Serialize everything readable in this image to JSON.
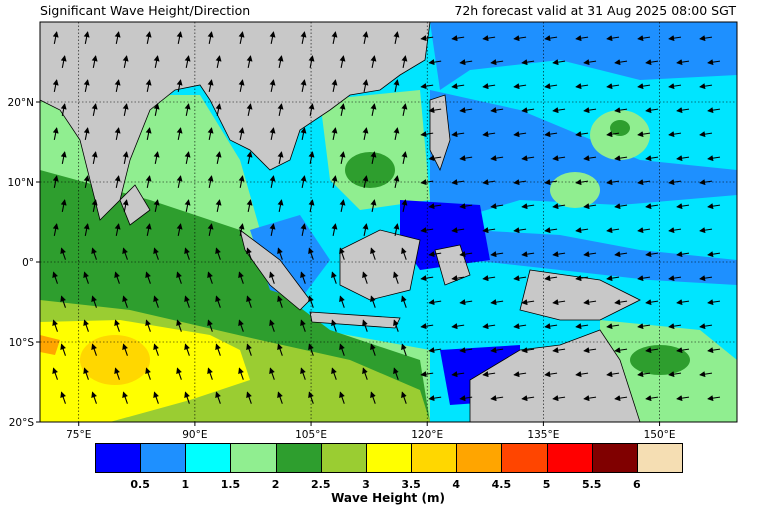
{
  "header": {
    "title": "Significant Wave Height/Direction",
    "valid_time": "72h forecast valid at 31 Aug 2025 08:00 SGT"
  },
  "map": {
    "lon_range": [
      70,
      160
    ],
    "lat_range": [
      -20,
      30
    ],
    "lon_ticks": [
      {
        "value": 75,
        "label": "75°E"
      },
      {
        "value": 90,
        "label": "90°E"
      },
      {
        "value": 105,
        "label": "105°E"
      },
      {
        "value": 120,
        "label": "120°E"
      },
      {
        "value": 135,
        "label": "135°E"
      },
      {
        "value": 150,
        "label": "150°E"
      }
    ],
    "lat_ticks": [
      {
        "value": 20,
        "label": "20°N"
      },
      {
        "value": 10,
        "label": "10°N"
      },
      {
        "value": 0,
        "label": "0°"
      },
      {
        "value": -10,
        "label": "10°S"
      },
      {
        "value": -20,
        "label": "20°S"
      }
    ],
    "land_color": "#c8c8c8",
    "dominant_arrow_direction": "north-west in south, westward in Pacific",
    "gridlines": "dotted"
  },
  "colorbar": {
    "title": "Wave Height (m)",
    "colors": [
      "#0000ff",
      "#1e90ff",
      "#00ffff",
      "#90ee90",
      "#2e9e2e",
      "#9acd32",
      "#ffff00",
      "#ffd700",
      "#ffa500",
      "#ff4500",
      "#ff0000",
      "#800000",
      "#f5deb3"
    ],
    "tick_labels": [
      "0.5",
      "1",
      "1.5",
      "2",
      "2.5",
      "3",
      "3.5",
      "4",
      "4.5",
      "5",
      "5.5",
      "6"
    ]
  }
}
